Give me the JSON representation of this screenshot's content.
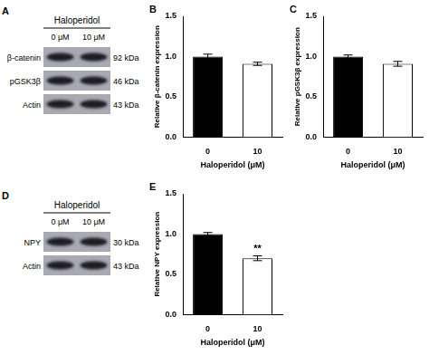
{
  "chart_data": [
    {
      "type": "bar",
      "title": "B",
      "categories": [
        "0",
        "10"
      ],
      "values": [
        1.0,
        0.91
      ],
      "errors": [
        0.03,
        0.02
      ],
      "colors": [
        "#000000",
        "#ffffff"
      ],
      "x_label": "Haloperidol (μM)",
      "y_label": "Relative β-catenin expression",
      "ylim": [
        0,
        1.5
      ],
      "yticks": [
        {
          "value": 0,
          "label": "0.0"
        },
        {
          "value": 0.5,
          "label": "0.5"
        },
        {
          "value": 1,
          "label": "1.0"
        },
        {
          "value": 1.5,
          "label": "1.5"
        }
      ],
      "grid": false
    },
    {
      "type": "bar",
      "title": "C",
      "categories": [
        "0",
        "10"
      ],
      "values": [
        1.0,
        0.91
      ],
      "errors": [
        0.02,
        0.03
      ],
      "colors": [
        "#000000",
        "#ffffff"
      ],
      "x_label": "Haloperidol (μM)",
      "y_label": "Relative pGSK3β expression",
      "ylim": [
        0,
        1.5
      ],
      "yticks": [
        {
          "value": 0,
          "label": "0.0"
        },
        {
          "value": 0.5,
          "label": "0.5"
        },
        {
          "value": 1,
          "label": "1.0"
        },
        {
          "value": 1.5,
          "label": "1.5"
        }
      ],
      "grid": false
    },
    {
      "type": "bar",
      "title": "E",
      "categories": [
        "0",
        "10"
      ],
      "values": [
        1.0,
        0.7
      ],
      "errors": [
        0.02,
        0.03
      ],
      "colors": [
        "#000000",
        "#ffffff"
      ],
      "x_label": "Haloperidol (μM)",
      "y_label": "Relative NPY expression",
      "ylim": [
        0,
        1.5
      ],
      "yticks": [
        {
          "value": 0,
          "label": "0.0"
        },
        {
          "value": 0.5,
          "label": "0.5"
        },
        {
          "value": 1,
          "label": "1.0"
        },
        {
          "value": 1.5,
          "label": "1.5"
        }
      ],
      "grid": false,
      "annotations": [
        {
          "category": "10",
          "text": "**"
        }
      ]
    }
  ],
  "blots": [
    {
      "panel": "A",
      "treatment": "Haloperidol",
      "lanes": [
        "0 μM",
        "10 μM"
      ],
      "rows": [
        {
          "protein": "β-catenin",
          "size": "92 kDa"
        },
        {
          "protein": "pGSK3β",
          "size": "46 kDa"
        },
        {
          "protein": "Actin",
          "size": "43 kDa"
        }
      ]
    },
    {
      "panel": "D",
      "treatment": "Haloperidol",
      "lanes": [
        "0 μM",
        "10 μM"
      ],
      "rows": [
        {
          "protein": "NPY",
          "size": "30 kDa"
        },
        {
          "protein": "Actin",
          "size": "43 kDa"
        }
      ]
    }
  ]
}
